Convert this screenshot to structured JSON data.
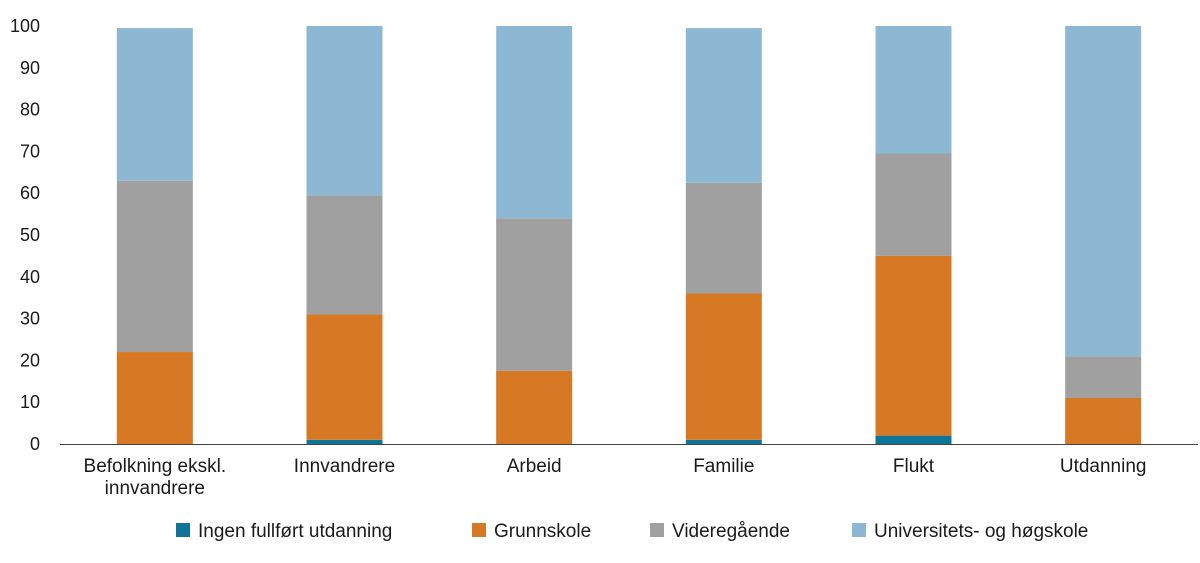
{
  "chart_data": {
    "type": "bar",
    "stacked": true,
    "categories": [
      [
        "Befolkning ekskl.",
        "innvandrere"
      ],
      [
        "Innvandrere"
      ],
      [
        "Arbeid"
      ],
      [
        "Familie"
      ],
      [
        "Flukt"
      ],
      [
        "Utdanning"
      ]
    ],
    "series": [
      {
        "name": "Ingen fullført utdanning",
        "color": "#0e7599",
        "values": [
          0,
          1,
          0,
          1,
          2,
          0
        ]
      },
      {
        "name": "Grunnskole",
        "color": "#d67824",
        "values": [
          22,
          30,
          17.5,
          35,
          43,
          11
        ]
      },
      {
        "name": "Videregående",
        "color": "#a0a0a0",
        "values": [
          41,
          28.5,
          36.5,
          26.5,
          24.5,
          10
        ]
      },
      {
        "name": "Universitets- og høgskole",
        "color": "#8db8d4",
        "values": [
          36.5,
          40.5,
          46,
          37,
          30.5,
          79
        ]
      }
    ],
    "ylim": [
      0,
      100
    ],
    "yticks": [
      0,
      10,
      20,
      30,
      40,
      50,
      60,
      70,
      80,
      90,
      100
    ],
    "grid": false,
    "legend_position": "bottom",
    "xlabel": "",
    "ylabel": "",
    "title": ""
  }
}
